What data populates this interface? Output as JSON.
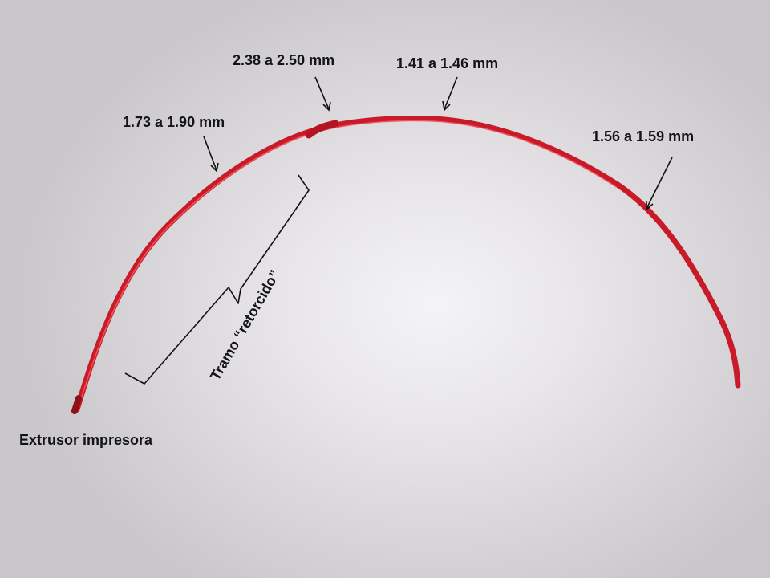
{
  "annotations": {
    "measure_1": "1.73 a 1.90 mm",
    "measure_2": "2.38 a 2.50 mm",
    "measure_3": "1.41 a 1.46 mm",
    "measure_4": "1.56 a 1.59 mm",
    "extruder": "Extrusor impresora",
    "twisted_section": "Tramo “retorcido”"
  },
  "colors": {
    "filament": "#d6202f",
    "filament_highlight": "#ff6a74",
    "ink": "#141414"
  }
}
